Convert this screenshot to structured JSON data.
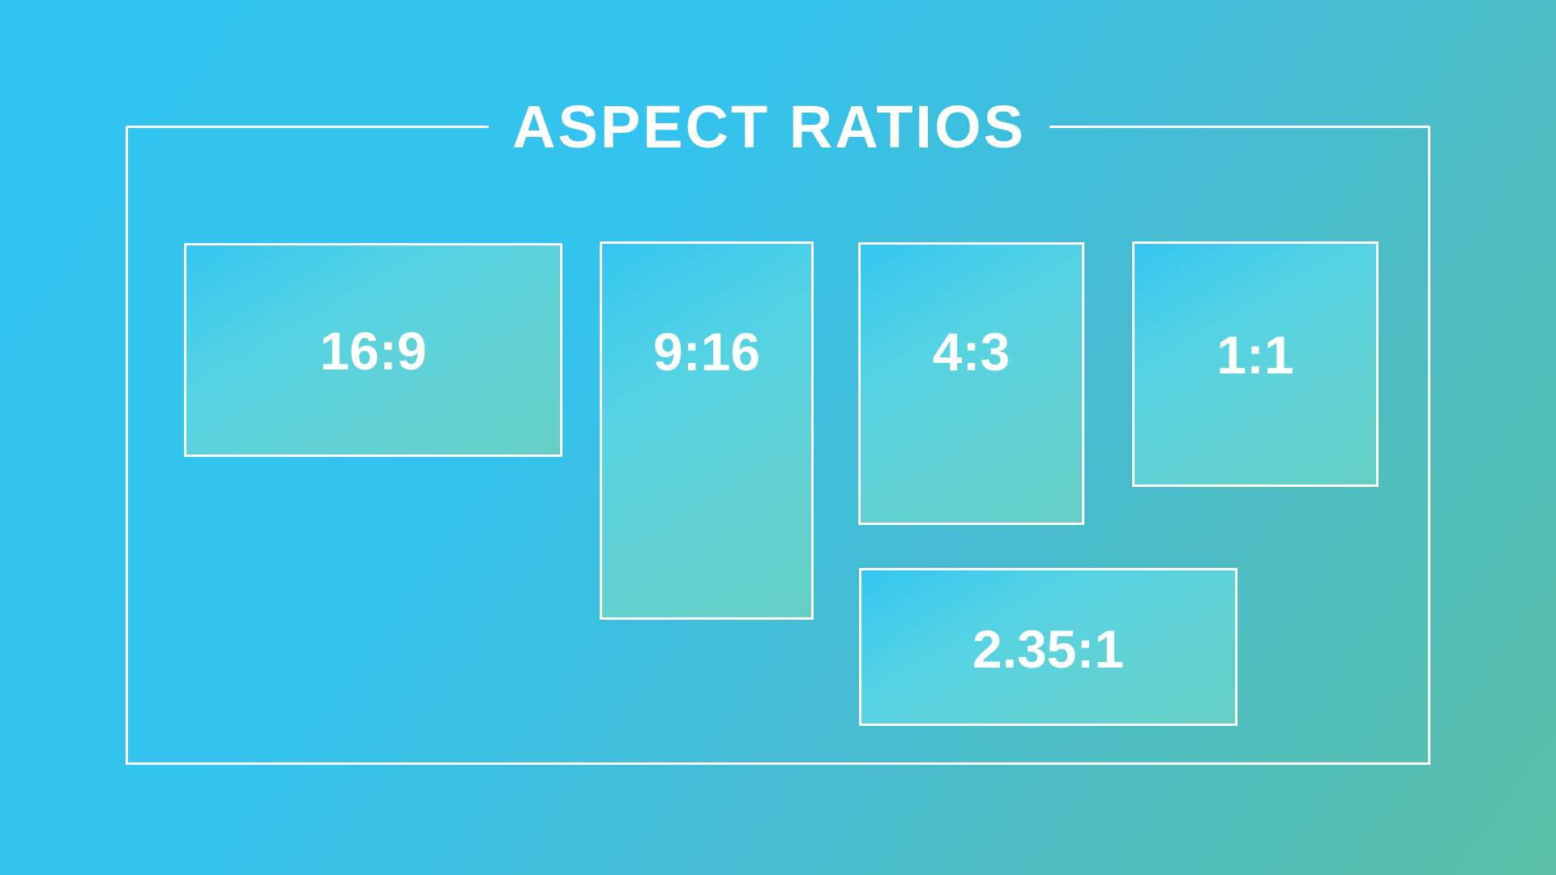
{
  "title": "ASPECT RATIOS",
  "boxes": [
    {
      "label": "16:9"
    },
    {
      "label": "9:16"
    },
    {
      "label": "4:3"
    },
    {
      "label": "1:1"
    },
    {
      "label": "2.35:1"
    }
  ]
}
